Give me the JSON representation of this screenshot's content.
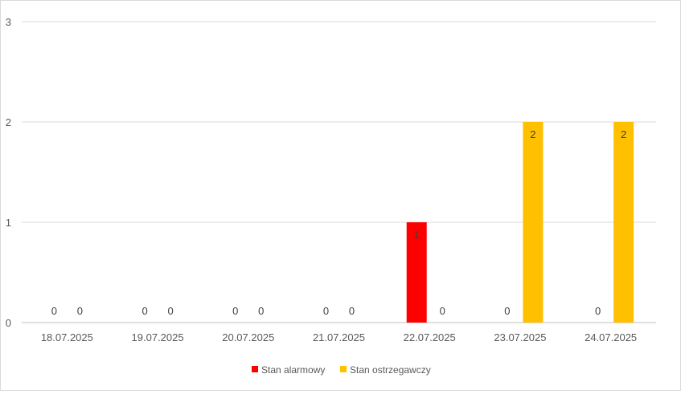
{
  "chart_data": {
    "type": "bar",
    "categories": [
      "18.07.2025",
      "19.07.2025",
      "20.07.2025",
      "21.07.2025",
      "22.07.2025",
      "23.07.2025",
      "24.07.2025"
    ],
    "series": [
      {
        "name": "Stan alarmowy",
        "color": "#ff0000",
        "values": [
          0,
          0,
          0,
          0,
          1,
          0,
          0
        ]
      },
      {
        "name": "Stan ostrzegawczy",
        "color": "#ffc000",
        "values": [
          0,
          0,
          0,
          0,
          0,
          2,
          2
        ]
      }
    ],
    "y_ticks": [
      "0",
      "1",
      "2",
      "3"
    ],
    "ylim": [
      0,
      3
    ],
    "grid": true,
    "data_labels": true,
    "legend_position": "bottom",
    "title": "",
    "xlabel": "",
    "ylabel": ""
  }
}
